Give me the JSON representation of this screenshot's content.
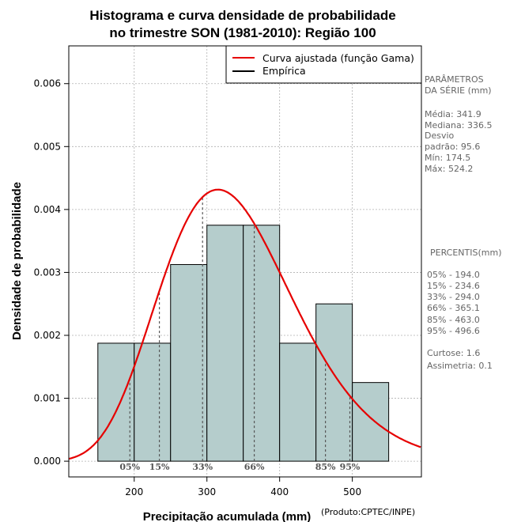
{
  "colors": {
    "bar_fill": "#b5cdcc",
    "bar_stroke": "#000000",
    "fitted_curve": "#e60000",
    "grid": "#b0b0b0",
    "percentile_line": "#555555",
    "side_text": "#666666"
  },
  "chart_data": {
    "type": "histogram",
    "title": [
      "Histograma e curva densidade de probabilidade",
      "no trimestre SON (1981-2010): Região 100"
    ],
    "xlabel": "Precipitação acumulada (mm)",
    "ylabel": "Densidade de probabilidade",
    "credit": "(Produto:CPTEC/INPE)",
    "xlim": [
      110,
      595
    ],
    "ylim": [
      -0.00025,
      0.0066
    ],
    "x_ticks": [
      200,
      300,
      400,
      500
    ],
    "y_ticks": [
      0.0,
      0.001,
      0.002,
      0.003,
      0.004,
      0.005,
      0.006
    ],
    "y_tick_labels": [
      "0.000",
      "0.001",
      "0.002",
      "0.003",
      "0.004",
      "0.005",
      "0.006"
    ],
    "bins": [
      {
        "x0": 150,
        "x1": 200,
        "density": 0.001875
      },
      {
        "x0": 200,
        "x1": 250,
        "density": 0.001875
      },
      {
        "x0": 250,
        "x1": 300,
        "density": 0.003125
      },
      {
        "x0": 300,
        "x1": 350,
        "density": 0.00375
      },
      {
        "x0": 350,
        "x1": 400,
        "density": 0.00375
      },
      {
        "x0": 400,
        "x1": 450,
        "density": 0.001875
      },
      {
        "x0": 450,
        "x1": 500,
        "density": 0.0025
      },
      {
        "x0": 500,
        "x1": 550,
        "density": 0.00125
      }
    ],
    "gamma_fit": {
      "mean": 341.9,
      "sd": 95.6
    },
    "legend": {
      "position": "top-right",
      "entries": [
        {
          "label": "Curva ajustada (função Gama)",
          "color": "#e60000"
        },
        {
          "label": "Empírica",
          "color": "#000000"
        }
      ]
    },
    "percentiles": [
      {
        "label": "05%",
        "value": 194.0
      },
      {
        "label": "15%",
        "value": 234.6
      },
      {
        "label": "33%",
        "value": 294.0
      },
      {
        "label": "66%",
        "value": 365.1
      },
      {
        "label": "85%",
        "value": 463.0
      },
      {
        "label": "95%",
        "value": 496.6
      }
    ]
  },
  "side_panel": {
    "params_title": [
      "PARÂMETROS",
      " DA SÉRIE (mm)"
    ],
    "params": [
      "Média:  341.9",
      "Mediana:  336.5",
      "Desvio",
      "padrão:  95.6",
      "Mín:  174.5",
      "Máx:  524.2"
    ],
    "percentis_title": "PERCENTIS(mm)",
    "percentis": [
      "05% -  194.0",
      "15% -  234.6",
      "33% -  294.0",
      "66% -  365.1",
      "85% -  463.0",
      "95% -  496.6"
    ],
    "shape": [
      "Curtose:  1.6",
      "Assimetria:  0.1"
    ]
  }
}
